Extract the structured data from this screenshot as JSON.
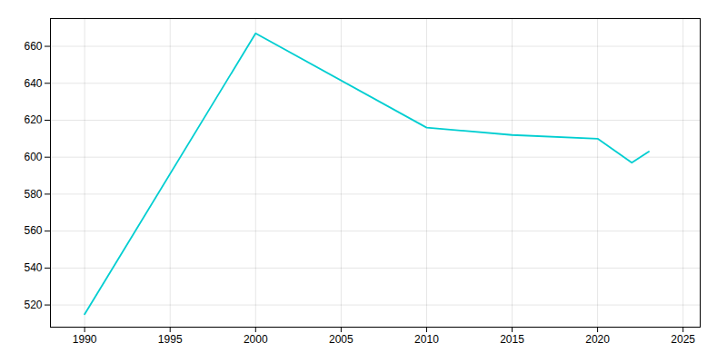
{
  "chart_data": {
    "type": "line",
    "x": [
      1990,
      2000,
      2010,
      2015,
      2020,
      2022,
      2023
    ],
    "values": [
      515,
      667,
      616,
      612,
      610,
      597,
      603
    ],
    "color": "#00CED1",
    "xlim": [
      1988,
      2026
    ],
    "ylim": [
      508,
      675
    ],
    "xticks": [
      1990,
      1995,
      2000,
      2005,
      2010,
      2015,
      2020,
      2025
    ],
    "yticks": [
      520,
      540,
      560,
      580,
      600,
      620,
      640,
      660
    ],
    "grid": true
  }
}
